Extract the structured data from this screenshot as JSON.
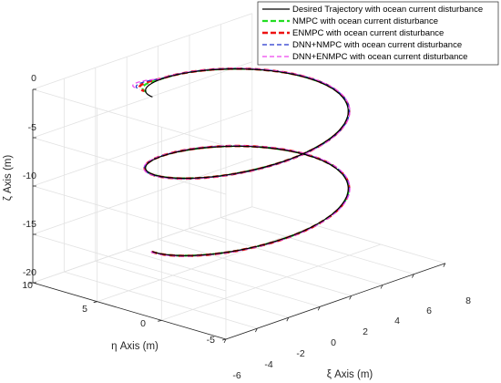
{
  "chart_data": {
    "type": "line3d",
    "title": "",
    "axes": {
      "xi": {
        "label": "ξ Axis (m)",
        "range": [
          -6,
          8
        ],
        "ticks": [
          "-6",
          "-4",
          "-2",
          "0",
          "2",
          "4",
          "6",
          "8"
        ]
      },
      "eta": {
        "label": "η Axis (m)",
        "range": [
          -5,
          10
        ],
        "ticks": [
          "-5",
          "0",
          "5",
          "10"
        ]
      },
      "zeta": {
        "label": "ζ Axis (m)",
        "range": [
          -20,
          0
        ],
        "ticks": [
          "0",
          "-5",
          "-10",
          "-15",
          "-20"
        ]
      }
    },
    "grid": true,
    "legend_position": "top-right",
    "series": [
      {
        "name": "Desired Trajectory with ocean current disturbance",
        "color": "#000000",
        "style": "solid"
      },
      {
        "name": "NMPC with ocean current disturbance",
        "color": "#22dd22",
        "style": "dashed"
      },
      {
        "name": "ENMPC with ocean current disturbance",
        "color": "#ee1111",
        "style": "dashed"
      },
      {
        "name": "DNN+NMPC with ocean current disturbance",
        "color": "#2233cc",
        "style": "dashed"
      },
      {
        "name": "DNN+ENMPC with ocean current disturbance",
        "color": "#ee44ee",
        "style": "dashed"
      }
    ],
    "trajectory": {
      "description_values": "helix",
      "radius_m": 5,
      "center_xi_m": 1.5,
      "center_eta_m": 2.5,
      "zeta_start_m": -16,
      "zeta_end_m": 0,
      "turns": 2
    }
  }
}
